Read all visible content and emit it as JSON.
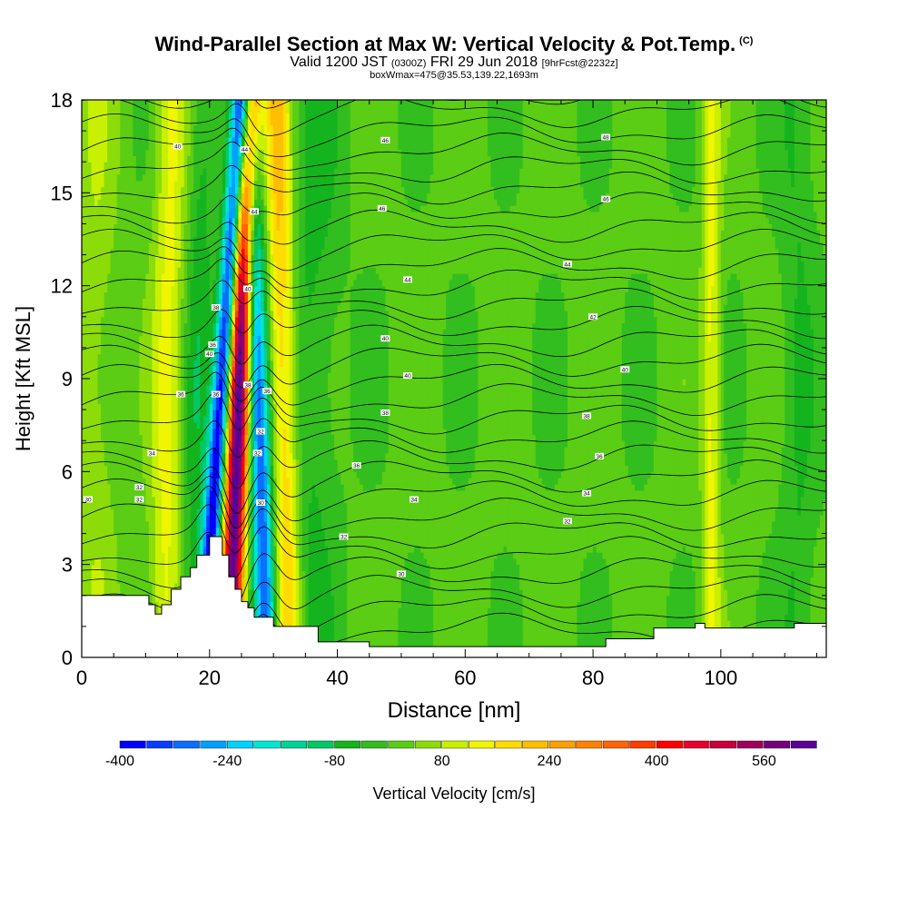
{
  "header": {
    "title": "Wind-Parallel Section at Max W: Vertical Velocity & Pot.Temp.",
    "title_units": "(C)",
    "valid_prefix": "Valid 1200 JST",
    "valid_utc": "(0300Z)",
    "valid_date": "FRI 29 Jun 2018",
    "forecast_info": "[9hrFcst@2232z]",
    "box_info": "boxWmax=475@35.53,139.22,1693m"
  },
  "chart_data": {
    "type": "heatmap",
    "xlabel": "Distance [nm]",
    "ylabel": "Height [Kft MSL]",
    "xlim": [
      0,
      116.5
    ],
    "ylim": [
      0,
      18
    ],
    "x_ticks": [
      "0",
      "20",
      "40",
      "60",
      "80",
      "100"
    ],
    "y_ticks": [
      "0",
      "3",
      "6",
      "9",
      "12",
      "15",
      "18"
    ],
    "colorbar": {
      "label": "Vertical Velocity [cm/s]",
      "tick_labels": [
        "-400",
        "-240",
        "-80",
        "80",
        "240",
        "400",
        "560"
      ],
      "levels": [
        -400,
        -360,
        -320,
        -280,
        -240,
        -200,
        -160,
        -120,
        -80,
        -40,
        0,
        40,
        80,
        120,
        160,
        200,
        240,
        280,
        320,
        360,
        400,
        440,
        480,
        520,
        560,
        600
      ],
      "colors": [
        "#0000ff",
        "#0a3cff",
        "#0a6eff",
        "#00a0ff",
        "#00d2ff",
        "#00e6d2",
        "#00d296",
        "#00c864",
        "#14b41e",
        "#32be1e",
        "#5acd14",
        "#8cdc0a",
        "#c8f000",
        "#f0f500",
        "#ffdc00",
        "#ffbe00",
        "#ffa000",
        "#ff8200",
        "#ff6400",
        "#ff3c00",
        "#ff0000",
        "#e6002d",
        "#c8003c",
        "#a0005a",
        "#78007d",
        "#5a0096"
      ]
    },
    "velocity_bands": [
      {
        "x_center": 22,
        "x_lean": 3.0,
        "sigma": 1.0,
        "w": -420
      },
      {
        "x_center": 27.5,
        "x_lean": -1.5,
        "sigma": 1.2,
        "w": -330
      },
      {
        "x_center": 24.7,
        "x_lean": 1.5,
        "sigma": 1.2,
        "w": 620
      },
      {
        "x_center": 31.5,
        "x_lean": -1.0,
        "sigma": 1.5,
        "w": 200
      },
      {
        "x_center": 13.5,
        "x_lean": 0.5,
        "sigma": 1.8,
        "w": 120
      },
      {
        "x_center": 18,
        "x_lean": 1.0,
        "sigma": 1.5,
        "w": -70
      },
      {
        "x_center": 36,
        "x_lean": 0.5,
        "sigma": 3.0,
        "w": -60
      },
      {
        "x_center": 2,
        "x_lean": 0,
        "sigma": 2.5,
        "w": 60
      },
      {
        "x_center": 98.5,
        "x_lean": 0,
        "sigma": 1.0,
        "w": 120
      },
      {
        "x_center": 112,
        "x_lean": 0,
        "sigma": 2.0,
        "w": -50
      }
    ],
    "terrain": {
      "x": [
        0,
        10.5,
        10.5,
        11.5,
        11.5,
        12.5,
        12.5,
        14,
        14,
        15.5,
        15.5,
        17,
        17,
        18,
        18,
        20,
        20,
        22,
        22,
        23,
        23,
        24,
        24,
        25,
        25,
        26,
        26,
        27,
        27,
        30,
        30,
        37,
        37,
        45,
        45,
        82,
        82,
        89.5,
        89.5,
        96,
        96,
        97.5,
        97.5,
        111.5,
        111.5,
        116.5
      ],
      "height": [
        2.0,
        2.0,
        1.7,
        1.7,
        1.4,
        1.4,
        1.7,
        1.7,
        2.2,
        2.2,
        2.6,
        2.6,
        2.9,
        2.9,
        3.3,
        3.3,
        3.9,
        3.9,
        3.3,
        3.3,
        2.6,
        2.6,
        2.2,
        2.2,
        1.8,
        1.8,
        1.6,
        1.6,
        1.3,
        1.3,
        1.0,
        1.0,
        0.5,
        0.5,
        0.35,
        0.35,
        0.6,
        0.6,
        0.95,
        0.95,
        1.1,
        1.1,
        0.95,
        0.95,
        1.1,
        1.1
      ]
    },
    "isentropes": {
      "count": 30,
      "labels": [
        {
          "text": "30",
          "x": 1,
          "y": 5.1
        },
        {
          "text": "32",
          "x": 9,
          "y": 5.5
        },
        {
          "text": "32",
          "x": 9,
          "y": 5.1
        },
        {
          "text": "34",
          "x": 11,
          "y": 6.6
        },
        {
          "text": "36",
          "x": 15.5,
          "y": 8.5
        },
        {
          "text": "40",
          "x": 15,
          "y": 16.5
        },
        {
          "text": "40",
          "x": 20,
          "y": 9.8
        },
        {
          "text": "38",
          "x": 21,
          "y": 11.3
        },
        {
          "text": "36",
          "x": 20.5,
          "y": 10.1
        },
        {
          "text": "36",
          "x": 21,
          "y": 8.5
        },
        {
          "text": "44",
          "x": 25.5,
          "y": 16.4
        },
        {
          "text": "44",
          "x": 27,
          "y": 14.4
        },
        {
          "text": "40",
          "x": 26,
          "y": 11.9
        },
        {
          "text": "38",
          "x": 26,
          "y": 8.8
        },
        {
          "text": "36",
          "x": 29,
          "y": 8.6
        },
        {
          "text": "32",
          "x": 28,
          "y": 7.3
        },
        {
          "text": "32",
          "x": 27.5,
          "y": 6.6
        },
        {
          "text": "30",
          "x": 28,
          "y": 5.0
        },
        {
          "text": "46",
          "x": 47.5,
          "y": 16.7
        },
        {
          "text": "46",
          "x": 47,
          "y": 14.5
        },
        {
          "text": "44",
          "x": 51,
          "y": 12.2
        },
        {
          "text": "40",
          "x": 47.5,
          "y": 10.3
        },
        {
          "text": "40",
          "x": 51,
          "y": 9.1
        },
        {
          "text": "38",
          "x": 47.5,
          "y": 7.9
        },
        {
          "text": "36",
          "x": 43,
          "y": 6.2
        },
        {
          "text": "34",
          "x": 52,
          "y": 5.1
        },
        {
          "text": "32",
          "x": 41,
          "y": 3.9
        },
        {
          "text": "30",
          "x": 50,
          "y": 2.7
        },
        {
          "text": "48",
          "x": 82,
          "y": 16.8
        },
        {
          "text": "46",
          "x": 82,
          "y": 14.8
        },
        {
          "text": "44",
          "x": 76,
          "y": 12.7
        },
        {
          "text": "42",
          "x": 80,
          "y": 11.0
        },
        {
          "text": "40",
          "x": 85,
          "y": 9.3
        },
        {
          "text": "38",
          "x": 79,
          "y": 7.8
        },
        {
          "text": "36",
          "x": 81,
          "y": 6.5
        },
        {
          "text": "34",
          "x": 79,
          "y": 5.3
        },
        {
          "text": "32",
          "x": 76,
          "y": 4.4
        }
      ]
    }
  }
}
